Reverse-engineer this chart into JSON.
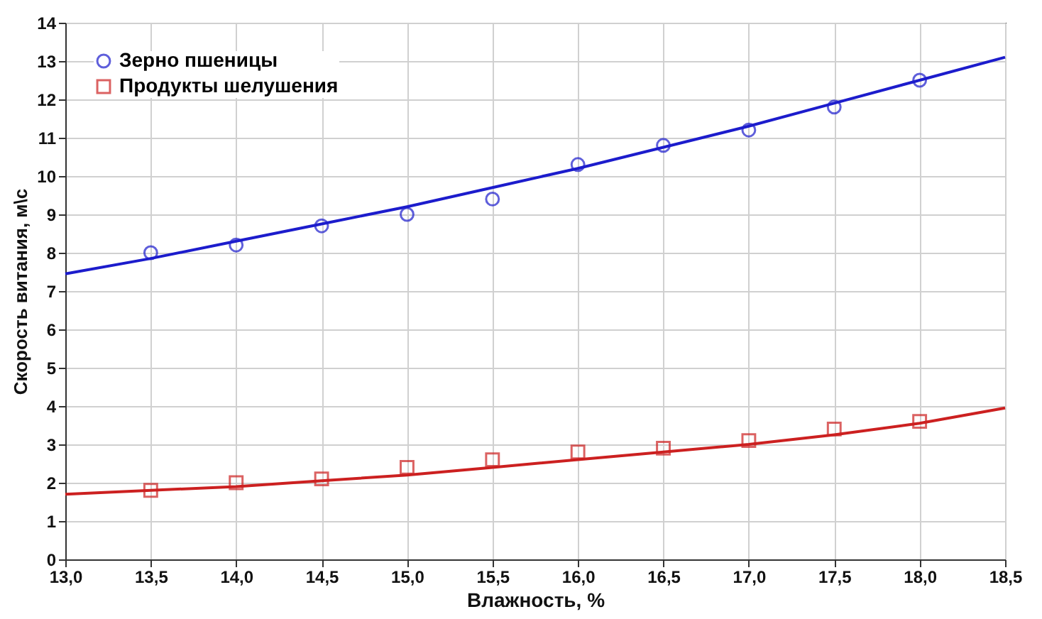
{
  "chart_data": {
    "type": "scatter",
    "xlabel": "Влажность, %",
    "ylabel": "Скорость витания, м\\с",
    "xlim": [
      13.0,
      18.5
    ],
    "xticks": [
      {
        "value": 13.0,
        "label": "13,0"
      },
      {
        "value": 13.5,
        "label": "13,5"
      },
      {
        "value": 14.0,
        "label": "14,0"
      },
      {
        "value": 14.5,
        "label": "14,5"
      },
      {
        "value": 15.0,
        "label": "15,0"
      },
      {
        "value": 15.5,
        "label": "15,5"
      },
      {
        "value": 16.0,
        "label": "16,0"
      },
      {
        "value": 16.5,
        "label": "16,5"
      },
      {
        "value": 17.0,
        "label": "17,0"
      },
      {
        "value": 17.5,
        "label": "17,5"
      },
      {
        "value": 18.0,
        "label": "18,0"
      },
      {
        "value": 18.5,
        "label": "18,5"
      }
    ],
    "ylim": [
      0,
      14
    ],
    "yticks": [
      0,
      1,
      2,
      3,
      4,
      5,
      6,
      7,
      8,
      9,
      10,
      11,
      12,
      13,
      14
    ],
    "grid": true,
    "legend": "top left",
    "series": [
      {
        "name": "Зерно пшеницы",
        "marker": "circle",
        "color": "#1c1ccc",
        "x": [
          13.5,
          14.0,
          14.5,
          15.0,
          15.5,
          16.0,
          16.5,
          17.0,
          17.5,
          18.0
        ],
        "values": [
          8.0,
          8.2,
          8.7,
          9.0,
          9.4,
          10.3,
          10.8,
          11.2,
          11.8,
          12.5
        ]
      },
      {
        "name": "Продукты шелушения",
        "marker": "square",
        "color": "#cc2020",
        "x": [
          13.5,
          14.0,
          14.5,
          15.0,
          15.5,
          16.0,
          16.5,
          17.0,
          17.5,
          18.0
        ],
        "values": [
          1.8,
          2.0,
          2.1,
          2.4,
          2.6,
          2.8,
          2.9,
          3.1,
          3.4,
          3.6
        ]
      },
      {
        "type": "line",
        "line_style": "solid",
        "color": "#1c1ccc",
        "x": [
          13.0,
          13.5,
          14.0,
          14.5,
          15.0,
          15.5,
          16.0,
          16.5,
          17.0,
          17.5,
          18.0,
          18.5
        ],
        "values": [
          7.45,
          7.85,
          8.3,
          8.75,
          9.2,
          9.7,
          10.2,
          10.75,
          11.3,
          11.9,
          12.5,
          13.1
        ]
      },
      {
        "type": "line",
        "line_style": "solid",
        "color": "#cc2020",
        "x": [
          13.0,
          13.5,
          14.0,
          14.5,
          15.0,
          15.5,
          16.0,
          16.5,
          17.0,
          17.5,
          18.0,
          18.5
        ],
        "values": [
          1.7,
          1.8,
          1.9,
          2.05,
          2.2,
          2.4,
          2.6,
          2.8,
          3.0,
          3.25,
          3.55,
          3.95
        ]
      }
    ]
  }
}
